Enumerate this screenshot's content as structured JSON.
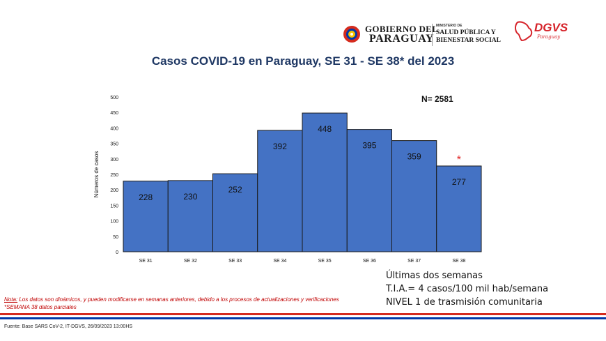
{
  "header": {
    "gov_line1": "GOBIERNO DEL",
    "gov_line2": "PARAGUAY",
    "ministry_small": "MINISTERIO DE",
    "ministry_line1": "SALUD PÚBLICA Y",
    "ministry_line2": "BIENESTAR SOCIAL",
    "dgvs": "DGVS",
    "dgvs_sub": "Paraguay"
  },
  "chart_data": {
    "type": "bar",
    "title": "Casos COVID-19 en Paraguay, SE 31 - SE 38* del  2023",
    "ylabel": "Números de casos",
    "xlabel": "",
    "categories": [
      "SE 31",
      "SE 32",
      "SE 33",
      "SE 34",
      "SE 35",
      "SE 36",
      "SE 37",
      "SE 38"
    ],
    "values": [
      228,
      230,
      252,
      392,
      448,
      395,
      359,
      277
    ],
    "ylim": [
      0,
      500
    ],
    "yticks": [
      0,
      50,
      100,
      150,
      200,
      250,
      300,
      350,
      400,
      450,
      500
    ],
    "bar_color": "#4472c4",
    "annotation": "N= 2581",
    "partial_marker": "*",
    "partial_marker_color": "#e02020",
    "grid": false
  },
  "info": {
    "line1": "Últimas dos semanas",
    "line2": "T.I.A.= 4 casos/100 mil hab/semana",
    "line3": "NIVEL 1 de trasmisión comunitaria"
  },
  "notes": {
    "note_label": "Nota:",
    "note_text": " Los datos son dinámicos, y pueden modificarse en semanas anteriores, debido a los procesos de actualizaciones y verificaciones",
    "partial_text": "*SEMANA 38 datos parciales"
  },
  "footer": {
    "source": "Fuente: Base SARS CoV-2, IT-DGVS, 26/09/2023 13:00HS"
  },
  "colors": {
    "title": "#1f3864",
    "flag_red": "#d52b1e",
    "flag_blue": "#0038a8"
  }
}
